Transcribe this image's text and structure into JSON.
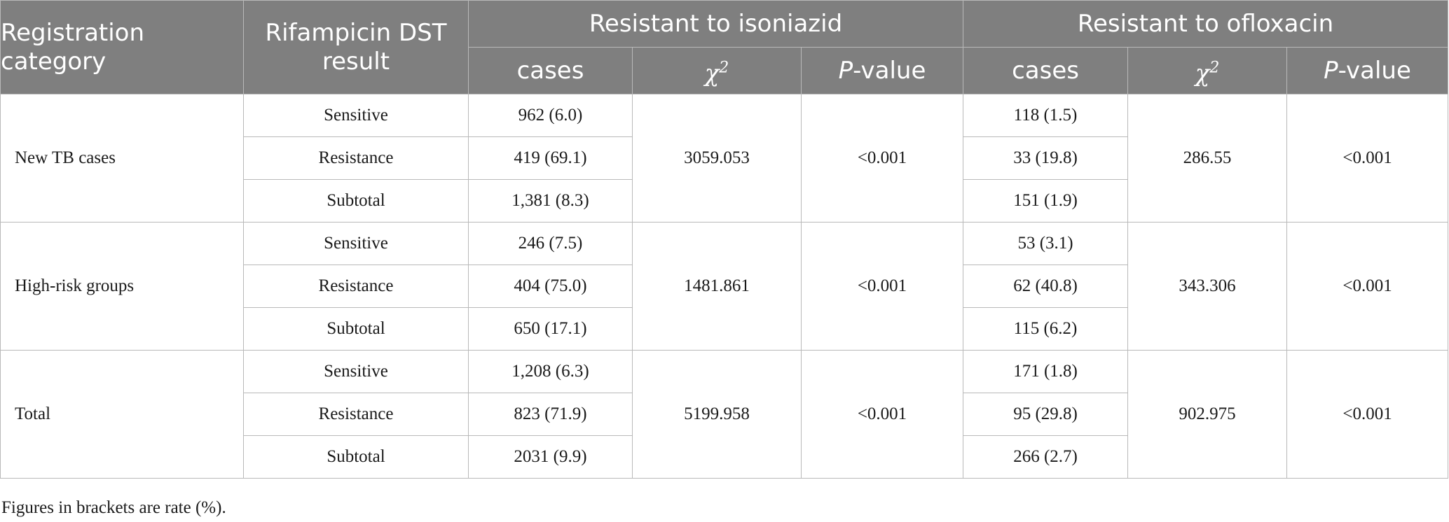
{
  "header": {
    "registration_category": "Registration category",
    "rifampicin_dst_result": "Rifampicin DST result",
    "resistant_to_isoniazid": "Resistant to isoniazid",
    "resistant_to_ofloxacin": "Resistant to ofloxacin",
    "cases": "cases",
    "chi_symbol": "χ",
    "chi_superscript": "2",
    "p_italic": "P",
    "p_suffix": "-value"
  },
  "groups": [
    {
      "category": "New TB cases",
      "isoniazid_chi2": "3059.053",
      "isoniazid_p": "<0.001",
      "ofloxacin_chi2": "286.55",
      "ofloxacin_p": "<0.001",
      "rows": [
        {
          "dst": "Sensitive",
          "isoniazid_cases": "962 (6.0)",
          "ofloxacin_cases": "118 (1.5)"
        },
        {
          "dst": "Resistance",
          "isoniazid_cases": "419 (69.1)",
          "ofloxacin_cases": "33 (19.8)"
        },
        {
          "dst": "Subtotal",
          "isoniazid_cases": "1,381 (8.3)",
          "ofloxacin_cases": "151 (1.9)"
        }
      ]
    },
    {
      "category": "High-risk groups",
      "isoniazid_chi2": "1481.861",
      "isoniazid_p": "<0.001",
      "ofloxacin_chi2": "343.306",
      "ofloxacin_p": "<0.001",
      "rows": [
        {
          "dst": "Sensitive",
          "isoniazid_cases": "246 (7.5)",
          "ofloxacin_cases": "53 (3.1)"
        },
        {
          "dst": "Resistance",
          "isoniazid_cases": "404 (75.0)",
          "ofloxacin_cases": "62 (40.8)"
        },
        {
          "dst": "Subtotal",
          "isoniazid_cases": "650 (17.1)",
          "ofloxacin_cases": "115 (6.2)"
        }
      ]
    },
    {
      "category": "Total",
      "isoniazid_chi2": "5199.958",
      "isoniazid_p": "<0.001",
      "ofloxacin_chi2": "902.975",
      "ofloxacin_p": "<0.001",
      "rows": [
        {
          "dst": "Sensitive",
          "isoniazid_cases": "1,208 (6.3)",
          "ofloxacin_cases": "171 (1.8)"
        },
        {
          "dst": "Resistance",
          "isoniazid_cases": "823 (71.9)",
          "ofloxacin_cases": "95 (29.8)"
        },
        {
          "dst": "Subtotal",
          "isoniazid_cases": "2031 (9.9)",
          "ofloxacin_cases": "266 (2.7)"
        }
      ]
    }
  ],
  "footnote": "Figures in brackets are rate (%).",
  "colors": {
    "header_bg": "#7f7f7f",
    "header_text": "#ffffff",
    "grid_line": "#b9b9b9",
    "body_text": "#1a1a1a"
  }
}
